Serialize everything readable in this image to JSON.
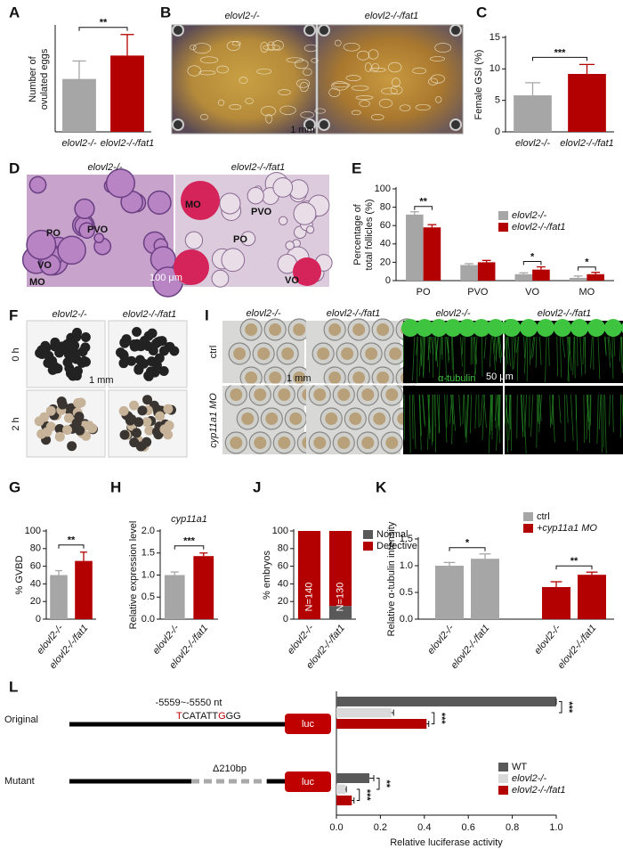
{
  "figure": {
    "B": {
      "label": "B",
      "columns": [
        "elovl2-/-",
        "elovl2-/-/fat1"
      ],
      "scale": "1 mm"
    },
    "D": {
      "label": "D",
      "columns": [
        "elovl2-/-",
        "elovl2-/-/fat1"
      ],
      "annotations": [
        "PO",
        "PVO",
        "VO",
        "MO",
        "MO",
        "PVO",
        "PO",
        "VO"
      ],
      "scale": "100 μm"
    },
    "F": {
      "label": "F",
      "columns": [
        "elovl2-/-",
        "elovl2-/-/fat1"
      ],
      "rows": [
        "0 h",
        "2 h"
      ],
      "scale": "1 mm"
    },
    "I": {
      "label": "I",
      "columns": [
        "elovl2-/-",
        "elovl2-/-/fat1",
        "elovl2-/-",
        "elovl2-/-/fat1"
      ],
      "rows": [
        "ctrl",
        "cyp11a1 MO"
      ],
      "scale": "1 mm",
      "stain": "α-tubulin",
      "stain_scale": "50 μm"
    },
    "L": {
      "rows": [
        "Original",
        "Mutant"
      ],
      "site": "-5559~-5550 nt",
      "sequence": [
        "T",
        "CATATT",
        "G",
        "GG"
      ],
      "deletion": "Δ210bp",
      "reporter": "luc"
    }
  },
  "chart_data": [
    {
      "label": "A",
      "type": "bar",
      "ylabel": [
        "Number of",
        "ovulated eggs"
      ],
      "categories": [
        "elovl2-/-",
        "elovl2-/-/fat1"
      ],
      "values": [
        88,
        127
      ],
      "errors": [
        30,
        35
      ],
      "colors": [
        "#a6a6a6",
        "#b30000"
      ],
      "ylim": [
        0,
        175
      ],
      "significance": "**"
    },
    {
      "label": "C",
      "type": "bar",
      "ylabel": [
        "Female GSI (%)"
      ],
      "categories": [
        "elovl2-/-",
        "elovl2-/-/fat1"
      ],
      "values": [
        5.8,
        9.2
      ],
      "errors": [
        2.0,
        1.5
      ],
      "colors": [
        "#a6a6a6",
        "#b30000"
      ],
      "ylim": [
        0,
        15
      ],
      "yticks": [
        0,
        5,
        10,
        15
      ],
      "significance": "***"
    },
    {
      "label": "E",
      "type": "grouped_bar",
      "ylabel": [
        "Percentage of",
        "total follicles (%)"
      ],
      "categories": [
        "PO",
        "PVO",
        "VO",
        "MO"
      ],
      "series": [
        {
          "name": "elovl2-/-",
          "color": "#a6a6a6",
          "values": [
            72,
            17,
            7,
            3
          ],
          "errors": [
            3,
            1.5,
            1.5,
            2
          ]
        },
        {
          "name": "elovl2-/-/fat1",
          "color": "#b30000",
          "values": [
            58,
            20,
            12,
            7
          ],
          "errors": [
            3,
            2,
            3,
            2
          ]
        }
      ],
      "ylim": [
        0,
        100
      ],
      "yticks": [
        0,
        20,
        40,
        60,
        80,
        100
      ],
      "significance": [
        "**",
        null,
        "*",
        "*"
      ]
    },
    {
      "label": "G",
      "type": "bar",
      "ylabel": [
        "% GVBD"
      ],
      "categories": [
        "elovl2-/-",
        "elovl2-/-/fat1"
      ],
      "values": [
        50,
        66
      ],
      "errors": [
        5,
        10
      ],
      "colors": [
        "#a6a6a6",
        "#b30000"
      ],
      "ylim": [
        0,
        100
      ],
      "yticks": [
        0,
        20,
        40,
        60,
        80,
        100
      ],
      "significance": "**"
    },
    {
      "label": "H",
      "type": "bar",
      "title": "cyp11a1",
      "ylabel": [
        "Relative expression level"
      ],
      "categories": [
        "elovl2-/-",
        "elovl2-/-/fat1"
      ],
      "values": [
        1.0,
        1.43
      ],
      "errors": [
        0.07,
        0.07
      ],
      "colors": [
        "#a6a6a6",
        "#b30000"
      ],
      "ylim": [
        0,
        2
      ],
      "yticks": [
        {
          "value": 0,
          "label": "0.0"
        },
        0.5,
        {
          "value": 1,
          "label": "1.0"
        },
        1.5,
        {
          "value": 2,
          "label": "2.0"
        }
      ],
      "significance": "***"
    },
    {
      "label": "J",
      "type": "stacked_bar",
      "ylabel": [
        "% embryos"
      ],
      "categories": [
        "elovl2-/-",
        "elovl2-/-/fat1"
      ],
      "series": [
        {
          "name": "Normal",
          "color": "#595959",
          "values": [
            0,
            15
          ]
        },
        {
          "name": "Defective",
          "color": "#b30000",
          "values": [
            100,
            85
          ]
        }
      ],
      "annotations": [
        "N=140",
        "N=130"
      ],
      "ylim": [
        0,
        100
      ],
      "yticks": [
        0,
        20,
        40,
        60,
        80,
        100
      ]
    },
    {
      "label": "K",
      "type": "grouped_bar_by_series",
      "ylabel": [
        "Relative α-tubulin intensity"
      ],
      "categories": [
        "elovl2-/-",
        "elovl2-/-/fat1"
      ],
      "series": [
        {
          "name": "ctrl",
          "color": "#a6a6a6",
          "values": [
            1.0,
            1.13
          ],
          "errors": [
            0.06,
            0.09
          ]
        },
        {
          "name": "+cyp11a1 MO",
          "color": "#b30000",
          "values": [
            0.6,
            0.83
          ],
          "errors": [
            0.1,
            0.05
          ]
        }
      ],
      "ylim": [
        0,
        1.5
      ],
      "yticks": [
        {
          "value": 0,
          "label": "0.0"
        },
        0.5,
        {
          "value": 1,
          "label": "1.0"
        },
        1.5
      ],
      "significance": [
        "*",
        "**"
      ]
    },
    {
      "label": "L",
      "type": "hbar",
      "xlabel": "Relative luciferase activity",
      "categories": [
        "Original",
        "Mutant"
      ],
      "series": [
        {
          "name": "WT",
          "color": "#595959",
          "values": [
            1.0,
            0.15
          ],
          "errors": [
            0,
            0.02
          ]
        },
        {
          "name": "elovl2-/-",
          "color": "#d9d9d9",
          "values": [
            0.25,
            0.04
          ],
          "errors": [
            0.01,
            0.005
          ]
        },
        {
          "name": "elovl2-/-/fat1",
          "color": "#b30000",
          "values": [
            0.41,
            0.07
          ],
          "errors": [
            0.01,
            0.01
          ]
        }
      ],
      "xlim": [
        0,
        1
      ],
      "xticks": [
        {
          "value": 0,
          "label": "0.0"
        },
        0.2,
        0.4,
        0.6,
        0.8,
        {
          "value": 1,
          "label": "1.0"
        }
      ],
      "significance": [
        [
          "***",
          "***"
        ],
        [
          "**",
          "***"
        ]
      ]
    }
  ]
}
